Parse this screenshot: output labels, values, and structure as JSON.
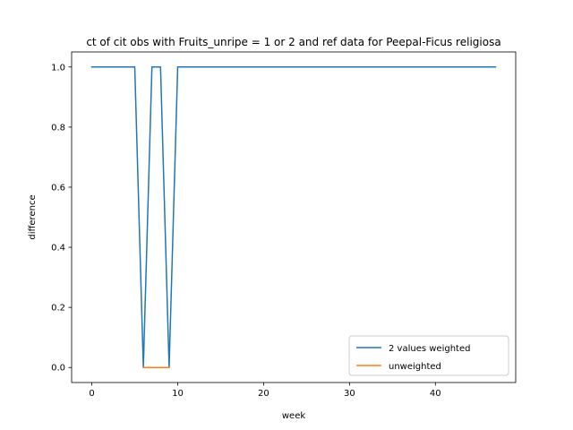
{
  "chart_data": {
    "type": "line",
    "title": "ct of cit obs with Fruits_unripe = 1 or 2 and ref data for Peepal-Ficus religiosa",
    "xlabel": "week",
    "ylabel": "difference",
    "xlim": [
      -2.35,
      49.35
    ],
    "ylim": [
      -0.05,
      1.05
    ],
    "xticks": [
      0,
      10,
      20,
      30,
      40
    ],
    "yticks": [
      0.0,
      0.2,
      0.4,
      0.6,
      0.8,
      1.0
    ],
    "xtick_labels": [
      "0",
      "10",
      "20",
      "30",
      "40"
    ],
    "ytick_labels": [
      "0.0",
      "0.2",
      "0.4",
      "0.6",
      "0.8",
      "1.0"
    ],
    "grid": false,
    "legend_position": "lower right",
    "series": [
      {
        "name": "2 values weighted",
        "color": "#1f77b4",
        "x": [
          0,
          1,
          2,
          3,
          4,
          5,
          6,
          7,
          8,
          9,
          10,
          11,
          12,
          13,
          14,
          15,
          16,
          17,
          18,
          19,
          20,
          21,
          22,
          23,
          24,
          25,
          26,
          27,
          28,
          29,
          30,
          31,
          32,
          33,
          34,
          35,
          36,
          37,
          38,
          39,
          40,
          41,
          42,
          43,
          44,
          45,
          46,
          47
        ],
        "y": [
          1,
          1,
          1,
          1,
          1,
          1,
          0,
          1,
          1,
          0,
          1,
          1,
          1,
          1,
          1,
          1,
          1,
          1,
          1,
          1,
          1,
          1,
          1,
          1,
          1,
          1,
          1,
          1,
          1,
          1,
          1,
          1,
          1,
          1,
          1,
          1,
          1,
          1,
          1,
          1,
          1,
          1,
          1,
          1,
          1,
          1,
          1,
          1
        ]
      },
      {
        "name": "unweighted",
        "color": "#ff7f0e",
        "x": [
          6,
          7,
          8,
          9
        ],
        "y": [
          0,
          0,
          0,
          0
        ]
      }
    ]
  }
}
